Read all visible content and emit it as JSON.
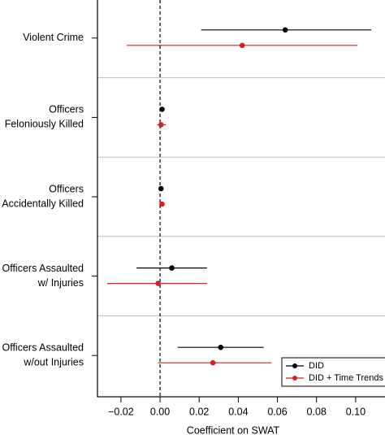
{
  "chart_data": {
    "type": "errorbar",
    "categories": [
      [
        "Violent Crime"
      ],
      [
        "Officers",
        "Feloniously Killed"
      ],
      [
        "Officers",
        "Accidentally Killed"
      ],
      [
        "Officers Assaulted",
        "w/ Injuries"
      ],
      [
        "Officers Assaulted",
        "w/out Injuries"
      ]
    ],
    "series": [
      {
        "name": "DID",
        "color": "#000000",
        "values": [
          0.064,
          0.001,
          0.0005,
          0.006,
          0.031
        ],
        "lower": [
          0.021,
          0.0005,
          0.0002,
          -0.012,
          0.009
        ],
        "upper": [
          0.108,
          0.0015,
          0.0008,
          0.024,
          0.053
        ]
      },
      {
        "name": "DID + Time Trends",
        "color": "#d62020",
        "values": [
          0.042,
          0.0005,
          0.001,
          -0.001,
          0.027
        ],
        "lower": [
          -0.017,
          -0.0015,
          0.0006,
          -0.027,
          -0.001
        ],
        "upper": [
          0.101,
          0.003,
          0.0014,
          0.024,
          0.057
        ]
      }
    ],
    "xlabel": "Coefficient on SWAT",
    "xlim": [
      -0.032,
      0.115
    ],
    "xticks": [
      {
        "value": -0.02,
        "label": "−0.02"
      },
      {
        "value": 0,
        "label": "0.00"
      },
      0.02,
      0.04,
      0.06,
      0.08,
      {
        "value": 0.1,
        "label": "0.10"
      }
    ],
    "reference_line": 0,
    "legend": "bottom-right"
  }
}
